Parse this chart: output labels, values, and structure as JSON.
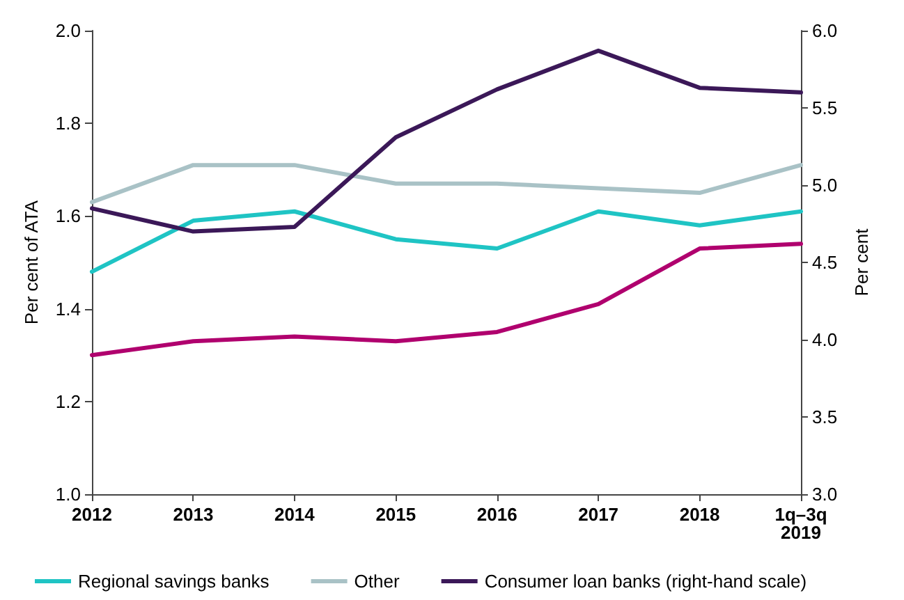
{
  "chart_data": {
    "type": "line",
    "categories": [
      "2012",
      "2013",
      "2014",
      "2015",
      "2016",
      "2017",
      "2018",
      "1q–3q 2019"
    ],
    "ylabel": "Per cent of ATA",
    "y2label": "Per cent",
    "ylim": [
      1.0,
      2.0
    ],
    "yticks": [
      {
        "value": 1.0,
        "label": "1.0"
      },
      {
        "value": 1.2,
        "label": "1.2"
      },
      {
        "value": 1.4,
        "label": "1.4"
      },
      {
        "value": 1.6,
        "label": "1.6"
      },
      {
        "value": 1.8,
        "label": "1.8"
      },
      {
        "value": 2.0,
        "label": "2.0"
      }
    ],
    "y2lim": [
      3.0,
      6.0
    ],
    "y2ticks": [
      {
        "value": 3.0,
        "label": "3.0"
      },
      {
        "value": 3.5,
        "label": "3.5"
      },
      {
        "value": 4.0,
        "label": "4.0"
      },
      {
        "value": 4.5,
        "label": "4.5"
      },
      {
        "value": 5.0,
        "label": "5.0"
      },
      {
        "value": 5.5,
        "label": "5.5"
      },
      {
        "value": 6.0,
        "label": "6.0"
      }
    ],
    "series": [
      {
        "color": "#b0006e",
        "values": [
          1.3,
          1.33,
          1.34,
          1.33,
          1.35,
          1.41,
          1.53,
          1.54
        ]
      },
      {
        "name": "Regional savings banks",
        "color": "#1fc4c4",
        "values": [
          1.48,
          1.59,
          1.61,
          1.55,
          1.53,
          1.61,
          1.58,
          1.61
        ]
      },
      {
        "name": "Other",
        "color": "#a9c2c6",
        "values": [
          1.63,
          1.71,
          1.71,
          1.67,
          1.67,
          1.66,
          1.65,
          1.71
        ]
      },
      {
        "name": "Consumer loan banks (right-hand scale)",
        "color": "#3b1858",
        "axis": "y2",
        "values": [
          4.85,
          4.7,
          4.73,
          5.31,
          5.62,
          5.87,
          5.63,
          5.6
        ]
      }
    ],
    "grid": false,
    "legend": "bottom",
    "marker": "none",
    "line_style": "solid"
  }
}
